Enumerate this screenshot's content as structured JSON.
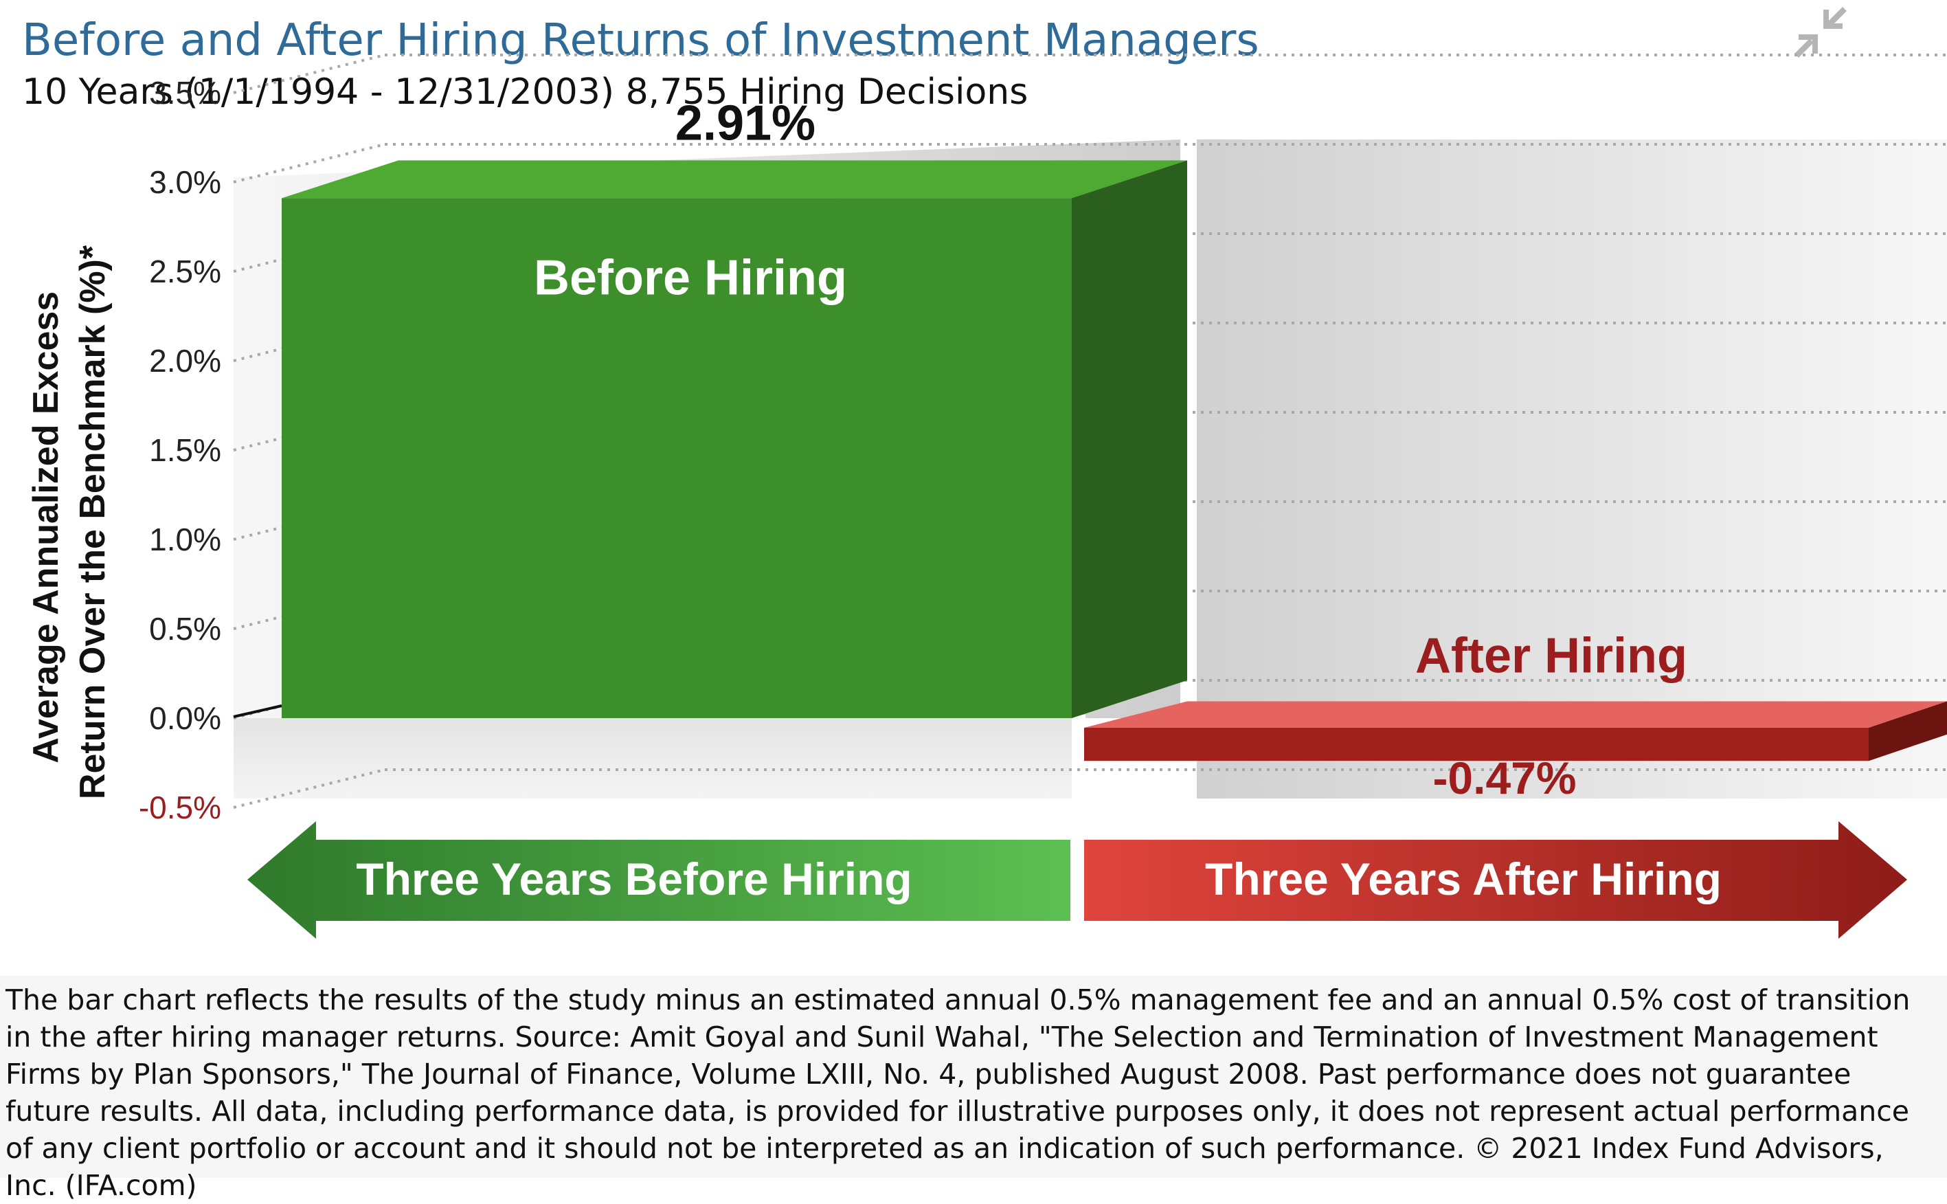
{
  "header": {
    "title": "Before and After Hiring Returns of Investment Managers",
    "subtitle": "10 Years (1/1/1994 - 12/31/2003) 8,755 Hiring Decisions"
  },
  "icons": {
    "collapse": "collapse-arrows-icon"
  },
  "colors": {
    "title": "#2f6b98",
    "before_front": "#3d8f2c",
    "before_top": "#4faa33",
    "before_side": "#2a5f1e",
    "after_front": "#a0201c",
    "after_top": "#e66460",
    "after_side": "#6b1410",
    "after_label": "#9b1d1d",
    "negative_tick": "#9b1d1d",
    "arrow_left_start": "#2f7a2b",
    "arrow_left_end": "#5cbf52",
    "arrow_right_start": "#e0453c",
    "arrow_right_end": "#8e1c18"
  },
  "chart_data": {
    "type": "bar",
    "title": "Before and After Hiring Returns of Investment Managers",
    "subtitle": "10 Years (1/1/1994 - 12/31/2003) 8,755 Hiring Decisions",
    "ylabel_line1": "Average Annualized Excess",
    "ylabel_line2": "Return Over the Benchmark (%)*",
    "ylim": [
      -0.5,
      3.5
    ],
    "yticks": [
      -0.5,
      0.0,
      0.5,
      1.0,
      1.5,
      2.0,
      2.5,
      3.0,
      3.5
    ],
    "ytick_labels": [
      "-0.5%",
      "0.0%",
      "0.5%",
      "1.0%",
      "1.5%",
      "2.0%",
      "2.5%",
      "3.0%",
      "3.5%"
    ],
    "grid": true,
    "style": "3d",
    "categories": [
      "Before Hiring",
      "After Hiring"
    ],
    "values": [
      2.91,
      -0.47
    ],
    "data_labels": [
      "2.91%",
      "-0.47%"
    ],
    "period_labels": [
      "Three Years Before Hiring",
      "Three Years After Hiring"
    ]
  },
  "footnote": "The bar chart reflects the results of the study minus an estimated annual 0.5% management fee and an annual 0.5% cost of transition in the after hiring manager returns. Source: Amit Goyal and Sunil Wahal, \"The Selection and Termination of Investment Management Firms by Plan Sponsors,\" The Journal of Finance, Volume LXIII, No. 4, published August 2008. Past performance does not guarantee future results. All data, including performance data, is provided for illustrative purposes only, it does not represent actual performance of any client portfolio or account and it should not be interpreted as an indication of such performance. © 2021 Index Fund Advisors, Inc. (IFA.com)"
}
